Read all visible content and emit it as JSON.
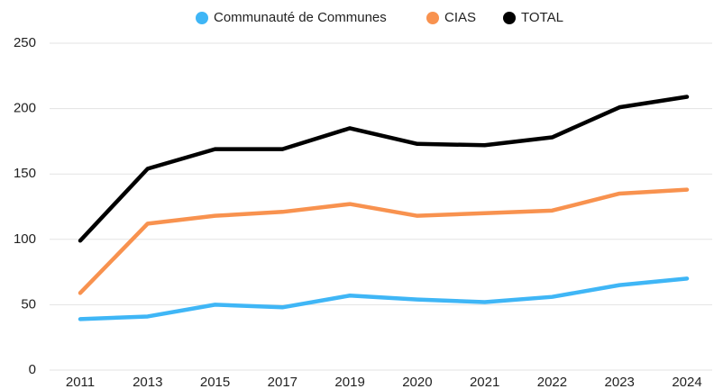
{
  "chart_data": {
    "type": "line",
    "categories": [
      "2011",
      "2013",
      "2015",
      "2017",
      "2019",
      "2020",
      "2021",
      "2022",
      "2023",
      "2024"
    ],
    "series": [
      {
        "name": "Communauté de Communes",
        "color": "#3fb6f6",
        "values": [
          39,
          41,
          50,
          48,
          57,
          54,
          52,
          56,
          65,
          70
        ]
      },
      {
        "name": "CIAS",
        "color": "#f8924f",
        "values": [
          59,
          112,
          118,
          121,
          127,
          118,
          120,
          122,
          135,
          138
        ]
      },
      {
        "name": "TOTAL",
        "color": "#000000",
        "values": [
          99,
          154,
          169,
          169,
          185,
          173,
          172,
          178,
          201,
          209
        ]
      }
    ],
    "ylim": [
      0,
      250
    ],
    "yticks": [
      0,
      50,
      100,
      150,
      200,
      250
    ],
    "grid": true,
    "legend": "top"
  }
}
